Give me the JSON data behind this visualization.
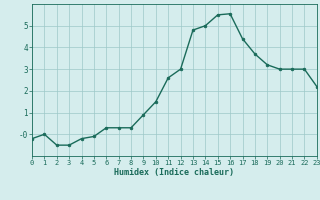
{
  "x": [
    0,
    1,
    2,
    3,
    4,
    5,
    6,
    7,
    8,
    9,
    10,
    11,
    12,
    13,
    14,
    15,
    16,
    17,
    18,
    19,
    20,
    21,
    22,
    23
  ],
  "y": [
    -0.2,
    0.0,
    -0.5,
    -0.5,
    -0.2,
    -0.1,
    0.3,
    0.3,
    0.3,
    0.9,
    1.5,
    2.6,
    3.0,
    4.8,
    5.0,
    5.5,
    5.55,
    4.4,
    3.7,
    3.2,
    3.0,
    3.0,
    3.0,
    2.2
  ],
  "xlabel": "Humidex (Indice chaleur)",
  "xlim": [
    0,
    23
  ],
  "ylim": [
    -1,
    6
  ],
  "yticks": [
    0,
    1,
    2,
    3,
    4,
    5
  ],
  "ytick_labels": [
    "-0",
    "1",
    "2",
    "3",
    "4",
    "5"
  ],
  "xticks": [
    0,
    1,
    2,
    3,
    4,
    5,
    6,
    7,
    8,
    9,
    10,
    11,
    12,
    13,
    14,
    15,
    16,
    17,
    18,
    19,
    20,
    21,
    22,
    23
  ],
  "line_color": "#1a6b5a",
  "bg_color": "#d5eded",
  "grid_color": "#9ec8c8"
}
